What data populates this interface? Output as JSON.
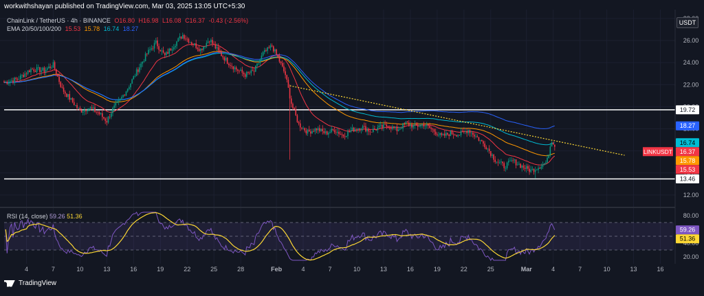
{
  "header": {
    "publisher": "workwithshayan published on TradingView.com, Mar 03, 2025 13:05 UTC+5:30",
    "currency": "USDT"
  },
  "ohlc_legend": {
    "symbol": "ChainLink / TetherUS · 4h · BINANCE",
    "open": "O16.80",
    "high": "H16.98",
    "low": "L16.08",
    "close": "C16.37",
    "change": "-0.43 (-2.56%)"
  },
  "ema_legend": {
    "label": "EMA 20/50/100/200",
    "ema20": "15.53",
    "ema50": "15.78",
    "ema100": "16.74",
    "ema200": "18.27"
  },
  "rsi_legend": {
    "label": "RSI (14, close)",
    "rsi": "59.26",
    "ma": "51.36"
  },
  "footer": {
    "brand": "TradingView"
  },
  "colors": {
    "background": "#131722",
    "up": "#089981",
    "down": "#f23645",
    "ema20": "#f23645",
    "ema50": "#ff9800",
    "ema100": "#00bcd4",
    "ema200": "#2962ff",
    "rsi": "#7e57c2",
    "rsi_ma": "#fdd835",
    "trendline": "#fdd835",
    "level_line": "#ffffff"
  },
  "chart_data": [
    {
      "type": "candlestick",
      "title": "ChainLink / TetherUS · 4h · BINANCE",
      "ylim": [
        11,
        28.8
      ],
      "y_ticks": [
        "28.00",
        "26.00",
        "24.00",
        "22.00",
        "20.00",
        "18.00",
        "16.00",
        "14.00",
        "12.00"
      ],
      "x_ticks": [
        "4",
        "7",
        "10",
        "13",
        "16",
        "19",
        "22",
        "25",
        "28",
        "Feb",
        "4",
        "7",
        "10",
        "13",
        "16",
        "19",
        "22",
        "25",
        "Mar",
        "4",
        "7",
        "10",
        "13",
        "16"
      ],
      "x_tick_days": [
        4,
        7,
        10,
        13,
        16,
        19,
        22,
        25,
        28,
        32,
        35,
        38,
        41,
        44,
        47,
        50,
        53,
        56,
        60,
        63,
        66,
        69,
        72,
        75
      ],
      "x_range_days": [
        1.5,
        76.5
      ],
      "last_candle_day": 63.3,
      "close_path": [
        [
          1.5,
          22.2
        ],
        [
          3,
          22.5
        ],
        [
          4.5,
          23.4
        ],
        [
          6,
          23.3
        ],
        [
          7,
          23.8
        ],
        [
          8,
          21.6
        ],
        [
          9,
          20.6
        ],
        [
          10,
          19.6
        ],
        [
          11,
          19.9
        ],
        [
          12,
          19.5
        ],
        [
          13,
          18.7
        ],
        [
          13.6,
          19.7
        ],
        [
          14.5,
          20.6
        ],
        [
          15.5,
          21.9
        ],
        [
          16.5,
          23.4
        ],
        [
          17.5,
          24.8
        ],
        [
          18.5,
          25.8
        ],
        [
          19.5,
          24.6
        ],
        [
          20.5,
          25.6
        ],
        [
          21.5,
          26.5
        ],
        [
          22.5,
          25.8
        ],
        [
          23.5,
          25.2
        ],
        [
          24.5,
          26.1
        ],
        [
          25.5,
          25.0
        ],
        [
          26.5,
          24.1
        ],
        [
          27.5,
          23.4
        ],
        [
          28.5,
          22.9
        ],
        [
          29.5,
          23.2
        ],
        [
          30.5,
          24.8
        ],
        [
          31.5,
          25.5
        ],
        [
          32.3,
          24.2
        ],
        [
          33,
          22.9
        ],
        [
          33.7,
          20.2
        ],
        [
          34.5,
          18.4
        ],
        [
          35.5,
          17.7
        ],
        [
          36.5,
          18.0
        ],
        [
          37.5,
          17.6
        ],
        [
          38.5,
          17.9
        ],
        [
          39.5,
          17.4
        ],
        [
          40.5,
          17.9
        ],
        [
          41.5,
          18.2
        ],
        [
          42.5,
          17.8
        ],
        [
          43.5,
          18.1
        ],
        [
          44.5,
          18.3
        ],
        [
          45.5,
          17.9
        ],
        [
          46.5,
          18.5
        ],
        [
          47.5,
          18.2
        ],
        [
          48.5,
          18.4
        ],
        [
          49.5,
          17.9
        ],
        [
          50.5,
          17.3
        ],
        [
          51.5,
          17.6
        ],
        [
          52.5,
          17.5
        ],
        [
          53.5,
          17.9
        ],
        [
          54.5,
          17.2
        ],
        [
          55.5,
          16.4
        ],
        [
          56.5,
          15.2
        ],
        [
          57.5,
          14.6
        ],
        [
          58.5,
          15.1
        ],
        [
          59.5,
          14.6
        ],
        [
          60.5,
          14.2
        ],
        [
          61.5,
          14.6
        ],
        [
          62.3,
          15.0
        ],
        [
          62.8,
          17.0
        ],
        [
          63.3,
          16.37
        ]
      ],
      "ema_series": [
        {
          "name": "EMA 20",
          "period": 20,
          "last": 15.53
        },
        {
          "name": "EMA 50",
          "period": 50,
          "last": 15.78
        },
        {
          "name": "EMA 100",
          "period": 100,
          "last": 16.74
        },
        {
          "name": "EMA 200",
          "period": 200,
          "last": 18.27
        }
      ],
      "horizontal_levels": [
        {
          "value": 19.72,
          "label": "19.72"
        },
        {
          "value": 13.46,
          "label": "13.46"
        }
      ],
      "trendline": {
        "from": [
          33.5,
          21.9
        ],
        "to": [
          71,
          15.6
        ]
      },
      "price_tags": [
        {
          "label": "18.27",
          "value": 18.27,
          "series": "EMA 200"
        },
        {
          "label": "16.74",
          "value": 16.74,
          "series": "EMA 100"
        },
        {
          "label": "LINKUSDT",
          "value": 16.37,
          "series": "price"
        },
        {
          "label": "16.37",
          "value": 16.37,
          "series": "price"
        },
        {
          "label": "15.78",
          "value": 15.78,
          "series": "EMA 50"
        },
        {
          "label": "15.53",
          "value": 15.53,
          "series": "EMA 20"
        }
      ]
    },
    {
      "type": "line",
      "title": "RSI (14, close)",
      "ylim": [
        10,
        90
      ],
      "y_ticks": [
        "80.00",
        "60.00",
        "40.00",
        "20.00"
      ],
      "band": [
        30,
        70
      ],
      "midline": 50,
      "series": [
        {
          "name": "RSI",
          "last": 59.26
        },
        {
          "name": "RSI MA",
          "last": 51.36
        }
      ],
      "value_tags": [
        "59.26",
        "51.36"
      ]
    }
  ]
}
